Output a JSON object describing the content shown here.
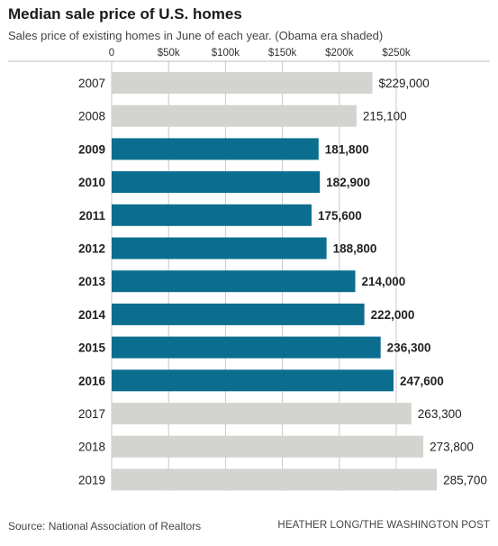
{
  "title": "Median sale price of U.S. homes",
  "subtitle": "Sales price of existing homes in June of each year. (Obama era shaded)",
  "footer": {
    "source": "Source: National Association of Realtors",
    "credit": "HEATHER LONG/THE WASHINGTON POST"
  },
  "colors": {
    "highlight": "#0b6e8f",
    "default": "#d3d3d0",
    "grid": "#c8c8c8"
  },
  "chart_data": {
    "type": "bar",
    "orientation": "horizontal",
    "title": "Median sale price of U.S. homes",
    "subtitle": "Sales price of existing homes in June of each year. (Obama era shaded)",
    "xlim": [
      0,
      300000
    ],
    "x_ticks": [
      0,
      50000,
      100000,
      150000,
      200000,
      250000
    ],
    "x_tick_labels": [
      "0",
      "$50k",
      "$100k",
      "$150k",
      "$200k",
      "$250k"
    ],
    "axis_position": "top",
    "grid": true,
    "categories": [
      "2007",
      "2008",
      "2009",
      "2010",
      "2011",
      "2012",
      "2013",
      "2014",
      "2015",
      "2016",
      "2017",
      "2018",
      "2019"
    ],
    "values": [
      229000,
      215100,
      181800,
      182900,
      175600,
      188800,
      214000,
      222000,
      236300,
      247600,
      263300,
      273800,
      285700
    ],
    "value_labels": [
      "$229,000",
      "215,100",
      "181,800",
      "182,900",
      "175,600",
      "188,800",
      "214,000",
      "222,000",
      "236,300",
      "247,600",
      "263,300",
      "273,800",
      "285,700"
    ],
    "highlighted": [
      false,
      false,
      true,
      true,
      true,
      true,
      true,
      true,
      true,
      true,
      false,
      false,
      false
    ]
  }
}
